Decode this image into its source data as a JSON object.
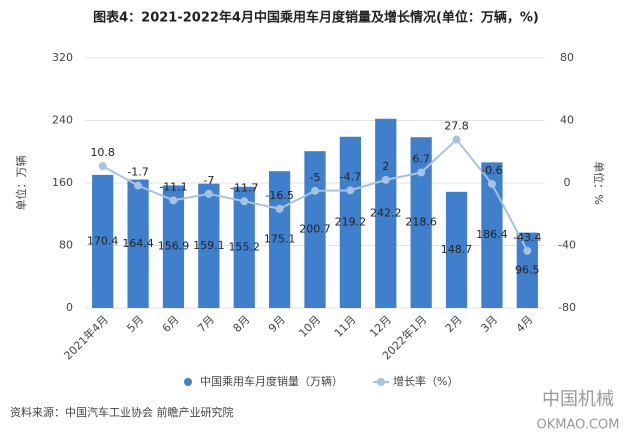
{
  "chart_data": {
    "type": "bar-line",
    "title": "图表4：2021-2022年4月中国乘用车月度销量及增长情况(单位：万辆，%)",
    "y_label": "单位：万辆",
    "y2_label": "单位：%",
    "categories": [
      "2021年4月",
      "5月",
      "6月",
      "7月",
      "8月",
      "9月",
      "10月",
      "11月",
      "12月",
      "2022年1月",
      "2月",
      "3月",
      "4月"
    ],
    "series": [
      {
        "name": "中国乘用车月度销量（万辆）",
        "color": "#3f7fcb",
        "values": [
          170.4,
          164.4,
          156.9,
          159.1,
          155.2,
          175.1,
          200.7,
          219.2,
          242.2,
          218.6,
          148.7,
          186.4,
          96.5
        ]
      },
      {
        "name": "增长率（%）",
        "color": "#a8c3e0",
        "axis": "y2",
        "values": [
          10.8,
          -1.7,
          -11.1,
          -7,
          -11.7,
          -16.5,
          -5,
          -4.7,
          2,
          6.7,
          27.8,
          -0.6,
          -43.4
        ]
      }
    ],
    "ylim": [
      0,
      320
    ],
    "yticks": [
      0,
      80,
      160,
      240,
      320
    ],
    "y2lim": [
      -80,
      80
    ],
    "y2ticks": [
      -80,
      -40,
      0,
      40,
      80
    ],
    "source": "资料来源：中国汽车工业协会 前瞻产业研究院",
    "watermark": [
      "中国机械",
      "OKMAO.COM"
    ]
  }
}
